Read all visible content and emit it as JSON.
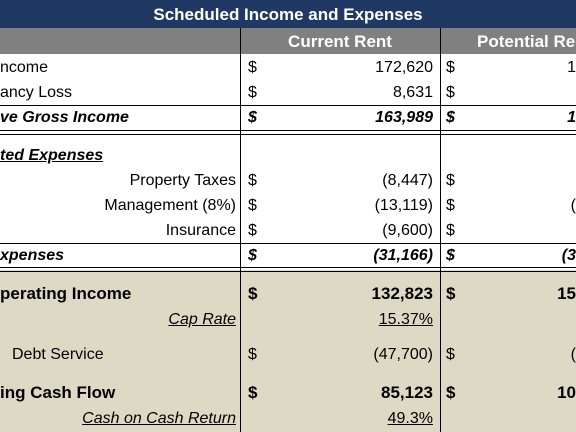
{
  "header": {
    "title": "Scheduled Income and Expenses",
    "columns": [
      "Current Rent",
      "Potential Re"
    ]
  },
  "rows": [
    {
      "label": "ncome",
      "current_sign": "$",
      "current": "172,620",
      "potential_sign": "$",
      "potential": "1"
    },
    {
      "label": "ancy Loss",
      "current_sign": "$",
      "current": "8,631",
      "potential_sign": "$"
    },
    {
      "label": "ve Gross Income",
      "current_sign": "$",
      "current": "163,989",
      "potential_sign": "$",
      "potential": "1"
    },
    {
      "label": "ted Expenses"
    },
    {
      "label": "Property Taxes",
      "current_sign": "$",
      "current": "(8,447)",
      "potential_sign": "$"
    },
    {
      "label": "Management (8%)",
      "current_sign": "$",
      "current": "(13,119)",
      "potential_sign": "$",
      "potential": "("
    },
    {
      "label": "Insurance",
      "current_sign": "$",
      "current": "(9,600)",
      "potential_sign": "$"
    },
    {
      "label": "xpenses",
      "current_sign": "$",
      "current": "(31,166)",
      "potential_sign": "$",
      "potential": "(3"
    },
    {
      "label": "perating Income",
      "current_sign": "$",
      "current": "132,823",
      "potential_sign": "$",
      "potential": "15"
    },
    {
      "label": "Cap Rate",
      "current": "15.37%"
    },
    {
      "label": "Debt Service",
      "current_sign": "$",
      "current": "(47,700)",
      "potential_sign": "$",
      "potential": "("
    },
    {
      "label": "ing Cash Flow",
      "current_sign": "$",
      "current": "85,123",
      "potential_sign": "$",
      "potential": "10"
    },
    {
      "label": "Cash on Cash Return",
      "current": "49.3%"
    }
  ]
}
